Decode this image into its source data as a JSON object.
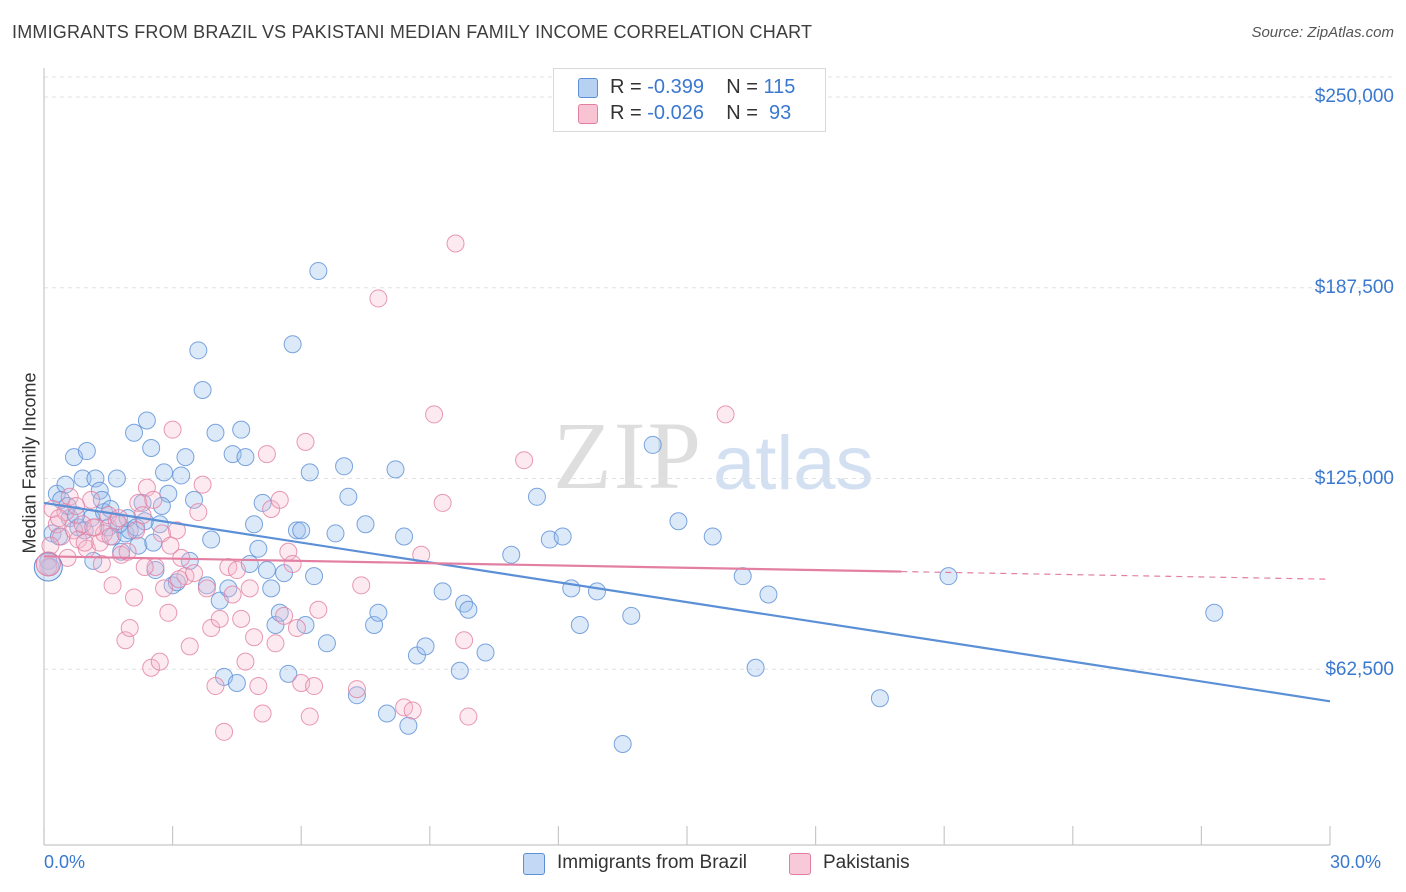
{
  "title": "IMMIGRANTS FROM BRAZIL VS PAKISTANI MEDIAN FAMILY INCOME CORRELATION CHART",
  "source": "Source: ZipAtlas.com",
  "watermark": {
    "zip": "ZIP",
    "atlas": "atlas"
  },
  "legend": {
    "rows": [
      {
        "r_label": "R = ",
        "r_value": "-0.399",
        "n_label": "N = ",
        "n_value": "115",
        "color": "#9cc0ee",
        "border": "#5b8fd6"
      },
      {
        "r_label": "R = ",
        "r_value": "-0.026",
        "n_label": "N = ",
        "n_value": " 93",
        "color": "#f6b9cc",
        "border": "#e27fa2"
      }
    ]
  },
  "bottom_legend": [
    {
      "label": "Immigrants from Brazil",
      "color": "#aecbf1",
      "border": "#5b8fd6"
    },
    {
      "label": "Pakistanis",
      "color": "#f8c3d3",
      "border": "#e27fa2"
    }
  ],
  "axes": {
    "ylabel": "Median Family Income",
    "x_min_label": "0.0%",
    "x_max_label": "30.0%",
    "y_ticks": [
      "$250,000",
      "$187,500",
      "$125,000",
      "$62,500"
    ]
  },
  "chart_data": {
    "type": "scatter",
    "xlim": [
      0,
      30
    ],
    "ylim": [
      0,
      250000
    ],
    "grid": true,
    "legend_position": "top-center",
    "series": [
      {
        "name": "Immigrants from Brazil",
        "color": "#5b8fd6",
        "trend": {
          "x0": 0,
          "y0": 117000,
          "x1": 30,
          "y1": 52000,
          "dashed_from": null
        },
        "points": [
          [
            0.1,
            98000
          ],
          [
            0.2,
            107000
          ],
          [
            0.3,
            120000
          ],
          [
            0.4,
            118000
          ],
          [
            0.5,
            123000
          ],
          [
            0.6,
            112000
          ],
          [
            0.7,
            132000
          ],
          [
            0.8,
            109000
          ],
          [
            0.9,
            125000
          ],
          [
            1.0,
            134000
          ],
          [
            1.1,
            112000
          ],
          [
            1.2,
            125000
          ],
          [
            1.3,
            121000
          ],
          [
            1.4,
            114000
          ],
          [
            1.5,
            109000
          ],
          [
            1.6,
            106000
          ],
          [
            1.7,
            125000
          ],
          [
            1.8,
            101000
          ],
          [
            1.9,
            107000
          ],
          [
            2.0,
            108000
          ],
          [
            2.1,
            140000
          ],
          [
            2.2,
            103000
          ],
          [
            2.3,
            117000
          ],
          [
            2.4,
            144000
          ],
          [
            2.5,
            135000
          ],
          [
            2.6,
            95000
          ],
          [
            2.7,
            110000
          ],
          [
            2.8,
            127000
          ],
          [
            2.9,
            120000
          ],
          [
            3.0,
            90000
          ],
          [
            3.1,
            91000
          ],
          [
            3.2,
            126000
          ],
          [
            3.3,
            132000
          ],
          [
            3.4,
            98000
          ],
          [
            3.5,
            118000
          ],
          [
            3.6,
            167000
          ],
          [
            3.7,
            154000
          ],
          [
            3.8,
            90000
          ],
          [
            3.9,
            105000
          ],
          [
            4.0,
            140000
          ],
          [
            4.1,
            85000
          ],
          [
            4.2,
            60000
          ],
          [
            4.3,
            89000
          ],
          [
            4.4,
            133000
          ],
          [
            4.5,
            58000
          ],
          [
            4.6,
            141000
          ],
          [
            4.7,
            132000
          ],
          [
            4.8,
            97000
          ],
          [
            4.9,
            110000
          ],
          [
            5.0,
            102000
          ],
          [
            5.1,
            117000
          ],
          [
            5.2,
            95000
          ],
          [
            5.3,
            89000
          ],
          [
            5.4,
            77000
          ],
          [
            5.5,
            81000
          ],
          [
            5.6,
            94000
          ],
          [
            5.7,
            61000
          ],
          [
            5.8,
            169000
          ],
          [
            5.9,
            108000
          ],
          [
            6.0,
            108000
          ],
          [
            6.1,
            77000
          ],
          [
            6.2,
            127000
          ],
          [
            6.3,
            93000
          ],
          [
            6.4,
            193000
          ],
          [
            6.6,
            71000
          ],
          [
            6.8,
            107000
          ],
          [
            7.0,
            129000
          ],
          [
            7.1,
            119000
          ],
          [
            7.3,
            54000
          ],
          [
            7.5,
            110000
          ],
          [
            7.7,
            77000
          ],
          [
            7.8,
            81000
          ],
          [
            8.0,
            48000
          ],
          [
            8.2,
            128000
          ],
          [
            8.4,
            106000
          ],
          [
            8.5,
            44000
          ],
          [
            8.7,
            67000
          ],
          [
            8.9,
            70000
          ],
          [
            9.3,
            88000
          ],
          [
            9.7,
            62000
          ],
          [
            9.8,
            84000
          ],
          [
            9.9,
            82000
          ],
          [
            10.3,
            68000
          ],
          [
            10.9,
            100000
          ],
          [
            11.5,
            119000
          ],
          [
            11.8,
            105000
          ],
          [
            12.1,
            106000
          ],
          [
            12.3,
            89000
          ],
          [
            12.5,
            77000
          ],
          [
            12.9,
            88000
          ],
          [
            13.5,
            38000
          ],
          [
            13.7,
            80000
          ],
          [
            14.2,
            136000
          ],
          [
            14.8,
            111000
          ],
          [
            15.6,
            106000
          ],
          [
            16.3,
            93000
          ],
          [
            16.6,
            63000
          ],
          [
            16.9,
            87000
          ],
          [
            19.5,
            53000
          ],
          [
            21.1,
            93000
          ],
          [
            27.3,
            81000
          ],
          [
            0.15,
            96000
          ],
          [
            0.35,
            106000
          ],
          [
            0.55,
            116000
          ],
          [
            0.75,
            113000
          ],
          [
            0.95,
            108000
          ],
          [
            1.15,
            98000
          ],
          [
            1.35,
            118000
          ],
          [
            1.55,
            115000
          ],
          [
            1.75,
            110000
          ],
          [
            1.95,
            112000
          ],
          [
            2.15,
            109000
          ],
          [
            2.35,
            111000
          ],
          [
            2.55,
            104000
          ],
          [
            2.75,
            116000
          ]
        ]
      },
      {
        "name": "Pakistanis",
        "color": "#e27fa2",
        "trend": {
          "x0": 0,
          "y0": 99500,
          "x1": 30,
          "y1": 92000,
          "dashed_from": 20
        },
        "points": [
          [
            0.1,
            96000
          ],
          [
            0.2,
            115000
          ],
          [
            0.3,
            110000
          ],
          [
            0.4,
            106000
          ],
          [
            0.5,
            114000
          ],
          [
            0.6,
            119000
          ],
          [
            0.7,
            108000
          ],
          [
            0.8,
            105000
          ],
          [
            0.9,
            110000
          ],
          [
            1.0,
            102000
          ],
          [
            1.1,
            118000
          ],
          [
            1.2,
            109000
          ],
          [
            1.3,
            104000
          ],
          [
            1.4,
            107000
          ],
          [
            1.5,
            113000
          ],
          [
            1.6,
            90000
          ],
          [
            1.7,
            111000
          ],
          [
            1.8,
            100000
          ],
          [
            1.9,
            72000
          ],
          [
            2.0,
            76000
          ],
          [
            2.1,
            86000
          ],
          [
            2.2,
            117000
          ],
          [
            2.3,
            113000
          ],
          [
            2.4,
            122000
          ],
          [
            2.5,
            63000
          ],
          [
            2.6,
            96000
          ],
          [
            2.7,
            65000
          ],
          [
            2.8,
            89000
          ],
          [
            2.9,
            81000
          ],
          [
            3.0,
            141000
          ],
          [
            3.1,
            108000
          ],
          [
            3.2,
            99000
          ],
          [
            3.3,
            93000
          ],
          [
            3.4,
            70000
          ],
          [
            3.5,
            94000
          ],
          [
            3.6,
            114000
          ],
          [
            3.7,
            123000
          ],
          [
            3.8,
            89000
          ],
          [
            3.9,
            76000
          ],
          [
            4.0,
            57000
          ],
          [
            4.1,
            79000
          ],
          [
            4.2,
            42000
          ],
          [
            4.3,
            96000
          ],
          [
            4.4,
            87000
          ],
          [
            4.5,
            95000
          ],
          [
            4.6,
            79000
          ],
          [
            4.7,
            65000
          ],
          [
            4.8,
            89000
          ],
          [
            4.9,
            73000
          ],
          [
            5.0,
            57000
          ],
          [
            5.1,
            48000
          ],
          [
            5.2,
            133000
          ],
          [
            5.3,
            115000
          ],
          [
            5.4,
            71000
          ],
          [
            5.5,
            118000
          ],
          [
            5.6,
            80000
          ],
          [
            5.7,
            101000
          ],
          [
            5.8,
            97000
          ],
          [
            5.9,
            76000
          ],
          [
            6.0,
            58000
          ],
          [
            6.1,
            137000
          ],
          [
            6.2,
            47000
          ],
          [
            6.3,
            57000
          ],
          [
            6.4,
            82000
          ],
          [
            7.3,
            56000
          ],
          [
            7.4,
            90000
          ],
          [
            7.8,
            184000
          ],
          [
            8.4,
            50000
          ],
          [
            8.6,
            49000
          ],
          [
            8.8,
            100000
          ],
          [
            9.1,
            146000
          ],
          [
            9.3,
            117000
          ],
          [
            9.6,
            202000
          ],
          [
            9.8,
            72000
          ],
          [
            9.9,
            47000
          ],
          [
            11.2,
            131000
          ],
          [
            15.9,
            146000
          ],
          [
            0.15,
            103000
          ],
          [
            0.35,
            112000
          ],
          [
            0.55,
            99000
          ],
          [
            0.75,
            116000
          ],
          [
            0.95,
            104000
          ],
          [
            1.15,
            109000
          ],
          [
            1.35,
            97000
          ],
          [
            1.55,
            106000
          ],
          [
            1.75,
            112000
          ],
          [
            1.95,
            101000
          ],
          [
            2.15,
            108000
          ],
          [
            2.35,
            96000
          ],
          [
            2.55,
            118000
          ],
          [
            2.75,
            107000
          ],
          [
            2.95,
            103000
          ],
          [
            3.15,
            92000
          ]
        ]
      }
    ]
  }
}
